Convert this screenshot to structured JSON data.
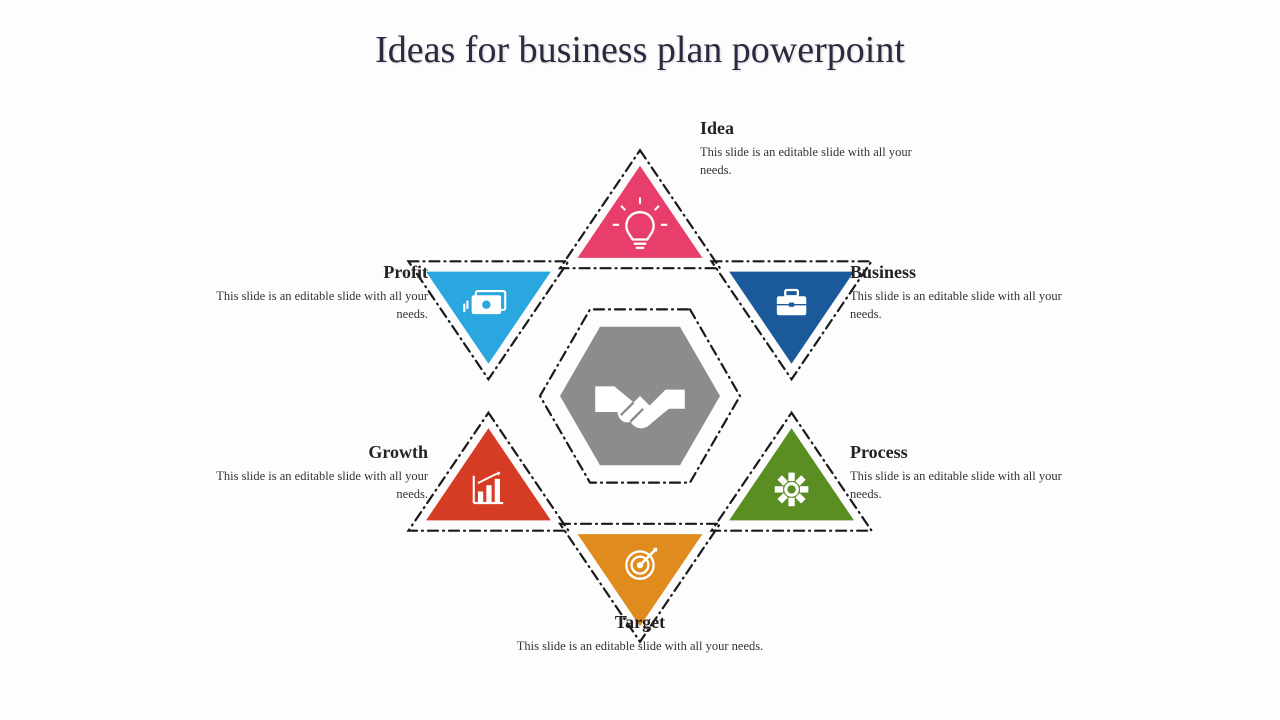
{
  "title": "Ideas for business plan powerpoint",
  "center": {
    "icon": "handshake-icon",
    "fill": "#8c8c8c",
    "border_style": "dash-dot"
  },
  "description": "This slide is an editable slide with all your needs.",
  "items": [
    {
      "label": "Idea",
      "icon": "lightbulb-icon",
      "fill": "#e83e6b",
      "orientation": "up",
      "pos": "top"
    },
    {
      "label": "Business",
      "icon": "briefcase-icon",
      "fill": "#1b5a9a",
      "orientation": "down",
      "pos": "upper-right"
    },
    {
      "label": "Process",
      "icon": "gear-icon",
      "fill": "#5a8e22",
      "orientation": "up",
      "pos": "lower-right"
    },
    {
      "label": "Target",
      "icon": "target-icon",
      "fill": "#e08b1e",
      "orientation": "down",
      "pos": "bottom"
    },
    {
      "label": "Growth",
      "icon": "barchart-icon",
      "fill": "#d63b24",
      "orientation": "up",
      "pos": "lower-left"
    },
    {
      "label": "Profit",
      "icon": "money-icon",
      "fill": "#2aa7df",
      "orientation": "down",
      "pos": "upper-left"
    }
  ],
  "styling": {
    "title_color": "#2a2a40",
    "title_fontsize": 38,
    "label_title_fontsize": 18,
    "label_body_fontsize": 12.5,
    "outer_border_color": "#1a1a1a",
    "outer_border_width": 2.2,
    "outer_border_dash": "10 5 1 5",
    "inner_triangle_scale": 0.78,
    "background": "#fdfdfd",
    "icon_color": "#ffffff"
  }
}
